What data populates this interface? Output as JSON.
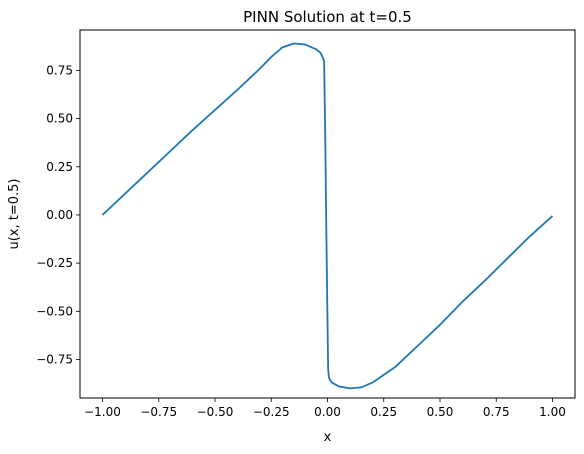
{
  "chart_data": {
    "type": "line",
    "title": "PINN Solution at t=0.5",
    "xlabel": "x",
    "ylabel": "u(x, t=0.5)",
    "xlim": [
      -1.1,
      1.1
    ],
    "ylim": [
      -0.95,
      0.96
    ],
    "grid": false,
    "xticks": [
      -1.0,
      -0.75,
      -0.5,
      -0.25,
      0.0,
      0.25,
      0.5,
      0.75,
      1.0
    ],
    "xtick_labels": [
      "−1.00",
      "−0.75",
      "−0.50",
      "−0.25",
      "0.00",
      "0.25",
      "0.50",
      "0.75",
      "1.00"
    ],
    "yticks": [
      -0.75,
      -0.5,
      -0.25,
      0.0,
      0.25,
      0.5,
      0.75
    ],
    "ytick_labels": [
      "−0.75",
      "−0.50",
      "−0.25",
      "0.00",
      "0.25",
      "0.50",
      "0.75"
    ],
    "series": [
      {
        "color": "#1f77b4",
        "x": [
          -1.0,
          -0.9,
          -0.8,
          -0.7,
          -0.6,
          -0.5,
          -0.4,
          -0.3,
          -0.25,
          -0.2,
          -0.15,
          -0.1,
          -0.05,
          -0.03,
          -0.015,
          -0.01,
          -0.005,
          0.0,
          0.003,
          0.006,
          0.01,
          0.02,
          0.05,
          0.1,
          0.15,
          0.2,
          0.3,
          0.4,
          0.5,
          0.6,
          0.7,
          0.8,
          0.9,
          1.0
        ],
        "y": [
          0.0,
          0.11,
          0.22,
          0.33,
          0.44,
          0.545,
          0.65,
          0.76,
          0.82,
          0.87,
          0.89,
          0.885,
          0.86,
          0.84,
          0.8,
          0.4,
          -0.1,
          -0.55,
          -0.8,
          -0.84,
          -0.855,
          -0.87,
          -0.89,
          -0.9,
          -0.895,
          -0.87,
          -0.79,
          -0.68,
          -0.57,
          -0.45,
          -0.34,
          -0.225,
          -0.11,
          -0.005
        ]
      }
    ]
  }
}
